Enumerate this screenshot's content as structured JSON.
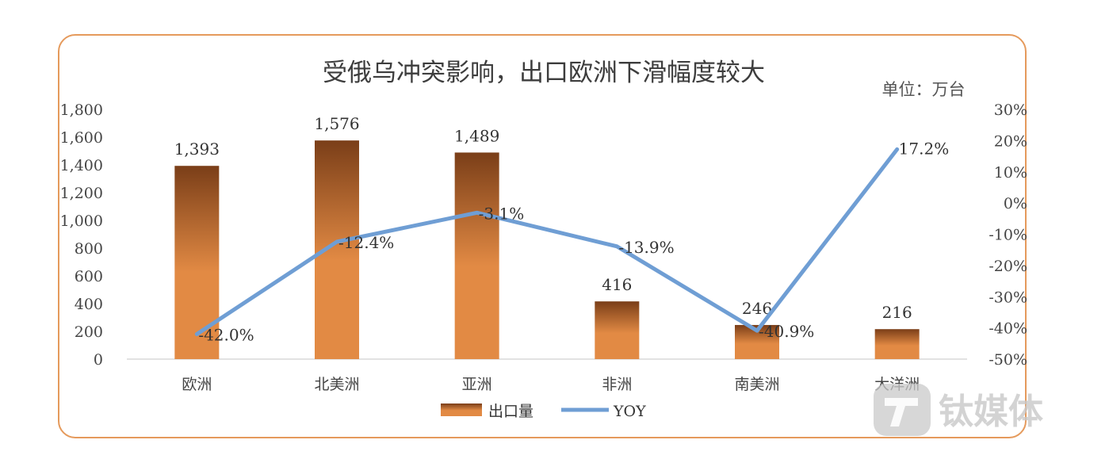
{
  "chart_data": {
    "type": "bar",
    "title": "受俄乌冲突影响，出口欧洲下滑幅度较大",
    "unit_label": "单位：万台",
    "categories": [
      "欧洲",
      "北美洲",
      "亚洲",
      "非洲",
      "南美洲",
      "大洋洲"
    ],
    "series": [
      {
        "name": "出口量",
        "type": "bar",
        "axis": "left",
        "values": [
          1393,
          1576,
          1489,
          416,
          246,
          216
        ],
        "labels": [
          "1,393",
          "1,576",
          "1,489",
          "416",
          "246",
          "216"
        ]
      },
      {
        "name": "YOY",
        "type": "line",
        "axis": "right",
        "values": [
          -42.0,
          -12.4,
          -3.1,
          -13.9,
          -40.9,
          17.2
        ],
        "labels": [
          "-42.0%",
          "-12.4%",
          "-3.1%",
          "-13.9%",
          "-40.9%",
          "17.2%"
        ]
      }
    ],
    "y_left": {
      "range": [
        0,
        1800
      ],
      "ticks": [
        0,
        200,
        400,
        600,
        800,
        1000,
        1200,
        1400,
        1600,
        1800
      ],
      "tick_labels": [
        "0",
        "200",
        "400",
        "600",
        "800",
        "1,000",
        "1,200",
        "1,400",
        "1,600",
        "1,800"
      ]
    },
    "y_right": {
      "range": [
        -50,
        30
      ],
      "ticks": [
        -50,
        -40,
        -30,
        -20,
        -10,
        0,
        10,
        20,
        30
      ],
      "tick_labels": [
        "-50%",
        "-40%",
        "-30%",
        "-20%",
        "-10%",
        "0%",
        "10%",
        "20%",
        "30%"
      ]
    },
    "grid": false,
    "legend_position": "bottom",
    "colors": {
      "bar_top": "#7a3e18",
      "bar_bottom": "#e28a44",
      "line": "#6f9ed4",
      "border": "#e59a5c"
    }
  },
  "watermark": {
    "text": "钛媒体"
  }
}
